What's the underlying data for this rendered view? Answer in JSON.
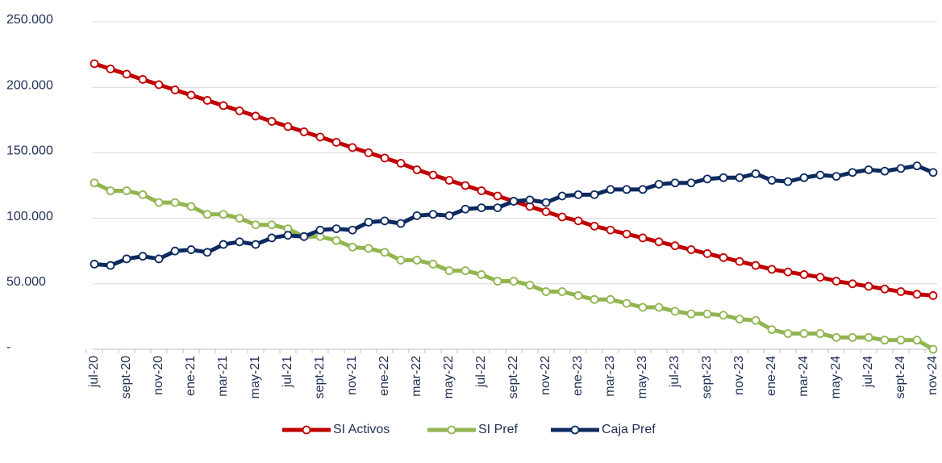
{
  "chart_data": {
    "type": "line",
    "categories": [
      "jul-20",
      null,
      "sept-20",
      null,
      "nov-20",
      null,
      "ene-21",
      null,
      "mar-21",
      null,
      "may-21",
      null,
      "jul-21",
      null,
      "sept-21",
      null,
      "nov-21",
      null,
      "ene-22",
      null,
      "mar-22",
      null,
      "may-22",
      null,
      "jul-22",
      null,
      "sept-22",
      null,
      "nov-22",
      null,
      "ene-23",
      null,
      "mar-23",
      null,
      "may-23",
      null,
      "jul-23",
      null,
      "sept-23",
      null,
      "nov-23",
      null,
      "ene-24",
      null,
      "mar-24",
      null,
      "may-24",
      null,
      "jul-24",
      null,
      "sept-24",
      null,
      "nov-24"
    ],
    "series": [
      {
        "name": "SI Activos",
        "color": "#c00000",
        "values": [
          218000,
          214000,
          210000,
          206000,
          202000,
          198000,
          194000,
          190000,
          186000,
          182000,
          178000,
          174000,
          170000,
          166000,
          162000,
          158000,
          154000,
          150000,
          146000,
          142000,
          137000,
          133000,
          129000,
          125000,
          121000,
          117000,
          113000,
          109000,
          105000,
          101000,
          98000,
          94000,
          91000,
          88000,
          85000,
          82000,
          79000,
          76000,
          73000,
          70000,
          67000,
          64000,
          61000,
          59000,
          57000,
          55000,
          52000,
          50000,
          48000,
          46000,
          44000,
          42000,
          41000
        ]
      },
      {
        "name": "SI Pref",
        "color": "#92b550",
        "values": [
          127000,
          121000,
          121000,
          118000,
          112000,
          112000,
          109000,
          103000,
          103000,
          100000,
          95000,
          95000,
          92000,
          86000,
          86000,
          83000,
          78000,
          77000,
          74000,
          68000,
          68000,
          65000,
          60000,
          60000,
          57000,
          52000,
          52000,
          49000,
          44000,
          44000,
          41000,
          38000,
          38000,
          35000,
          32000,
          32000,
          29000,
          27000,
          27000,
          26000,
          23000,
          22000,
          15000,
          12000,
          12000,
          12000,
          9000,
          9000,
          9000,
          7000,
          7000,
          7000,
          0
        ]
      },
      {
        "name": "Caja Pref",
        "color": "#0d2a5f",
        "values": [
          65000,
          64000,
          69000,
          71000,
          69000,
          75000,
          76000,
          74000,
          80000,
          82000,
          80000,
          85000,
          87000,
          86000,
          91000,
          92000,
          91000,
          97000,
          98000,
          96000,
          102000,
          103000,
          102000,
          107000,
          108000,
          108000,
          113000,
          114000,
          112000,
          117000,
          118000,
          118000,
          122000,
          122000,
          122000,
          126000,
          127000,
          127000,
          130000,
          131000,
          131000,
          134000,
          129000,
          128000,
          131000,
          133000,
          132000,
          135000,
          137000,
          136000,
          138000,
          140000,
          135000
        ]
      }
    ],
    "ylim": [
      0,
      250000
    ],
    "yticks": [
      {
        "value": 0,
        "label": "-"
      },
      {
        "value": 50000,
        "label": "50.000"
      },
      {
        "value": 100000,
        "label": "100.000"
      },
      {
        "value": 150000,
        "label": "150.000"
      },
      {
        "value": 200000,
        "label": "200.000"
      },
      {
        "value": 250000,
        "label": "250.000"
      }
    ],
    "grid": true,
    "legend": "bottom"
  }
}
